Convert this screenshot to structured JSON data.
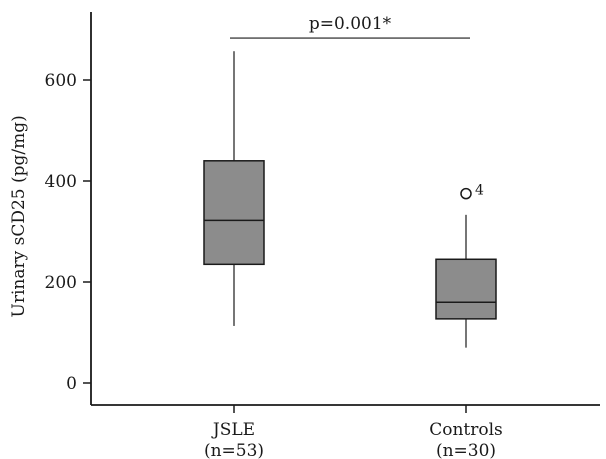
{
  "chart_data": {
    "type": "box",
    "title": "",
    "xlabel": "",
    "ylabel": "Urinary sCD25 (pg/mg)",
    "ylim": [
      -40,
      730
    ],
    "yticks": [
      0,
      200,
      400,
      600
    ],
    "categories": [
      {
        "name": "JSLE",
        "n": "(n=53)"
      },
      {
        "name": "Controls",
        "n": "(n=30)"
      }
    ],
    "boxes": [
      {
        "whisker_low": 113,
        "q1": 235,
        "median": 322,
        "q3": 440,
        "whisker_high": 657,
        "outliers": []
      },
      {
        "whisker_low": 70,
        "q1": 127,
        "median": 160,
        "q3": 245,
        "whisker_high": 333,
        "outliers": [
          {
            "value": 375,
            "label": "4"
          }
        ]
      }
    ],
    "annotation": {
      "text": "p=0.001*",
      "y": 683,
      "from": 0,
      "to": 1
    },
    "colors": {
      "box_fill": "#8c8c8c",
      "stroke": "#1a1a1a"
    }
  }
}
